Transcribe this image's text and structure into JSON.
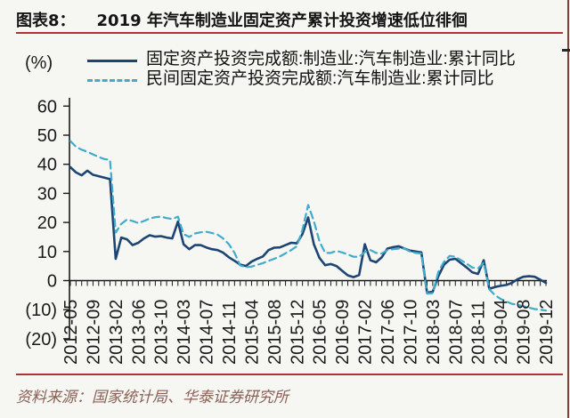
{
  "header": {
    "figure_label": "图表8：",
    "title": "2019 年汽车制造业固定资产累计投资增速低位徘徊"
  },
  "chart_data": {
    "type": "line",
    "title": "2019 年汽车制造业固定资产累计投资增速低位徘徊",
    "unit_label": "(%)",
    "ylim": [
      -20,
      60
    ],
    "grid": false,
    "legend_position": "top",
    "y_ticks": [
      60,
      50,
      40,
      30,
      20,
      10,
      0,
      -10,
      -20
    ],
    "y_tick_labels": [
      "60",
      "50",
      "40",
      "30",
      "20",
      "10",
      "0",
      "(10)",
      "(20)"
    ],
    "x_label_every": 4,
    "x_tick_labels": [
      "2012-05",
      "2012-09",
      "2013-02",
      "2013-06",
      "2013-10",
      "2014-03",
      "2014-07",
      "2014-11",
      "2015-04",
      "2015-08",
      "2015-12",
      "2016-05",
      "2016-09",
      "2017-02",
      "2017-06",
      "2017-10",
      "2018-03",
      "2018-07",
      "2018-11",
      "2019-04",
      "2019-08",
      "2019-12"
    ],
    "categories": [
      "2012-05",
      "2012-06",
      "2012-07",
      "2012-08",
      "2012-09",
      "2012-10",
      "2012-11",
      "2012-12",
      "2013-02",
      "2013-03",
      "2013-04",
      "2013-05",
      "2013-06",
      "2013-07",
      "2013-08",
      "2013-09",
      "2013-10",
      "2013-11",
      "2013-12",
      "2014-02",
      "2014-03",
      "2014-04",
      "2014-05",
      "2014-06",
      "2014-07",
      "2014-08",
      "2014-09",
      "2014-10",
      "2014-11",
      "2014-12",
      "2015-02",
      "2015-03",
      "2015-04",
      "2015-05",
      "2015-06",
      "2015-07",
      "2015-08",
      "2015-09",
      "2015-10",
      "2015-11",
      "2015-12",
      "2016-02",
      "2016-03",
      "2016-04",
      "2016-05",
      "2016-06",
      "2016-07",
      "2016-08",
      "2016-09",
      "2016-10",
      "2016-11",
      "2016-12",
      "2017-02",
      "2017-03",
      "2017-04",
      "2017-05",
      "2017-06",
      "2017-07",
      "2017-08",
      "2017-09",
      "2017-10",
      "2017-11",
      "2017-12",
      "2018-02",
      "2018-03",
      "2018-04",
      "2018-05",
      "2018-06",
      "2018-07",
      "2018-08",
      "2018-09",
      "2018-10",
      "2018-11",
      "2018-12",
      "2019-02",
      "2019-03",
      "2019-04",
      "2019-05",
      "2019-06",
      "2019-07",
      "2019-08",
      "2019-09",
      "2019-10",
      "2019-11",
      "2019-12"
    ],
    "series": [
      {
        "name": "固定资产投资完成额:制造业:汽车制造业:累计同比",
        "style": "solid",
        "color": "#1d4573",
        "values": [
          39.0,
          37.2,
          36.2,
          37.8,
          36.4,
          35.9,
          35.4,
          34.9,
          7.5,
          14.8,
          14.2,
          12.2,
          13.0,
          14.5,
          15.6,
          15.1,
          15.3,
          14.8,
          14.5,
          20.3,
          12.5,
          10.8,
          12.2,
          12.2,
          11.4,
          10.8,
          10.5,
          9.6,
          8.0,
          6.8,
          5.5,
          5.0,
          6.5,
          7.5,
          8.3,
          10.5,
          11.3,
          11.4,
          12.2,
          13.0,
          12.8,
          16.0,
          21.7,
          12.5,
          7.8,
          5.3,
          5.7,
          5.0,
          3.4,
          1.8,
          1.2,
          1.9,
          12.5,
          7.0,
          6.3,
          8.0,
          11.0,
          11.5,
          11.8,
          11.0,
          10.3,
          10.0,
          9.7,
          -4.2,
          -3.8,
          1.5,
          5.5,
          7.2,
          7.5,
          6.0,
          4.5,
          2.8,
          2.3,
          7.0,
          -2.8,
          -2.2,
          -1.8,
          -1.5,
          -0.8,
          0.5,
          1.3,
          1.5,
          1.3,
          0.3,
          -0.8
        ]
      },
      {
        "name": "民间固定资产投资完成额:汽车制造业:累计同比",
        "style": "dashed",
        "color": "#3faccb",
        "values": [
          48.0,
          46.0,
          45.0,
          44.3,
          43.4,
          42.5,
          41.8,
          41.5,
          16.5,
          19.5,
          21.0,
          20.5,
          19.8,
          20.5,
          21.3,
          21.8,
          22.0,
          21.5,
          21.2,
          22.0,
          16.0,
          15.0,
          16.2,
          16.6,
          16.8,
          16.4,
          15.8,
          14.5,
          12.5,
          9.5,
          5.2,
          4.6,
          4.8,
          5.4,
          6.0,
          6.8,
          7.5,
          8.3,
          9.4,
          10.5,
          11.8,
          17.5,
          26.0,
          20.5,
          13.5,
          9.5,
          9.5,
          10.2,
          9.7,
          9.0,
          8.2,
          8.2,
          9.8,
          10.5,
          9.5,
          9.3,
          10.5,
          10.8,
          11.0,
          11.0,
          10.0,
          9.5,
          9.3,
          -4.5,
          -4.3,
          3.0,
          6.5,
          8.5,
          8.2,
          7.0,
          5.8,
          4.5,
          4.2,
          6.2,
          -3.0,
          -5.0,
          -6.3,
          -7.2,
          -8.0,
          -8.3,
          -8.8,
          -9.3,
          -9.8,
          -10.0,
          -10.3
        ]
      }
    ]
  },
  "footer": {
    "source": "资料来源：国家统计局、华泰证券研究所"
  },
  "colors": {
    "accent_red": "#b0352f",
    "solid_line": "#1d4573",
    "dashed_line": "#3faccb",
    "source_text": "#8a6156"
  }
}
